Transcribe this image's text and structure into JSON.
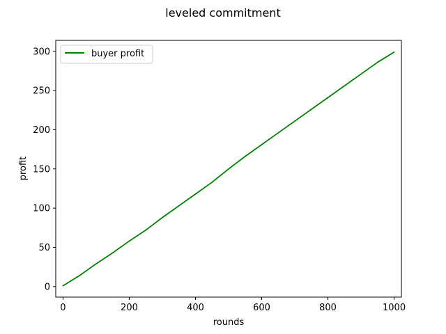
{
  "chart_data": {
    "type": "line",
    "title": "leveled commitment",
    "xlabel": "rounds",
    "ylabel": "profit",
    "xlim": [
      -22,
      1022
    ],
    "ylim": [
      -13.5,
      314
    ],
    "xticks": [
      0,
      200,
      400,
      600,
      800,
      1000
    ],
    "yticks": [
      0,
      50,
      100,
      150,
      200,
      250,
      300
    ],
    "grid": false,
    "legend_position": "top-left",
    "series": [
      {
        "name": "buyer profit",
        "color": "#008000",
        "x": [
          0,
          50,
          100,
          150,
          200,
          250,
          300,
          350,
          400,
          450,
          500,
          550,
          600,
          650,
          700,
          750,
          800,
          850,
          900,
          950,
          1000
        ],
        "y": [
          1,
          14,
          29,
          43,
          58,
          72,
          88,
          103,
          118,
          133,
          150,
          166,
          181,
          196,
          211,
          226,
          241,
          256,
          271,
          286,
          299
        ]
      }
    ]
  }
}
